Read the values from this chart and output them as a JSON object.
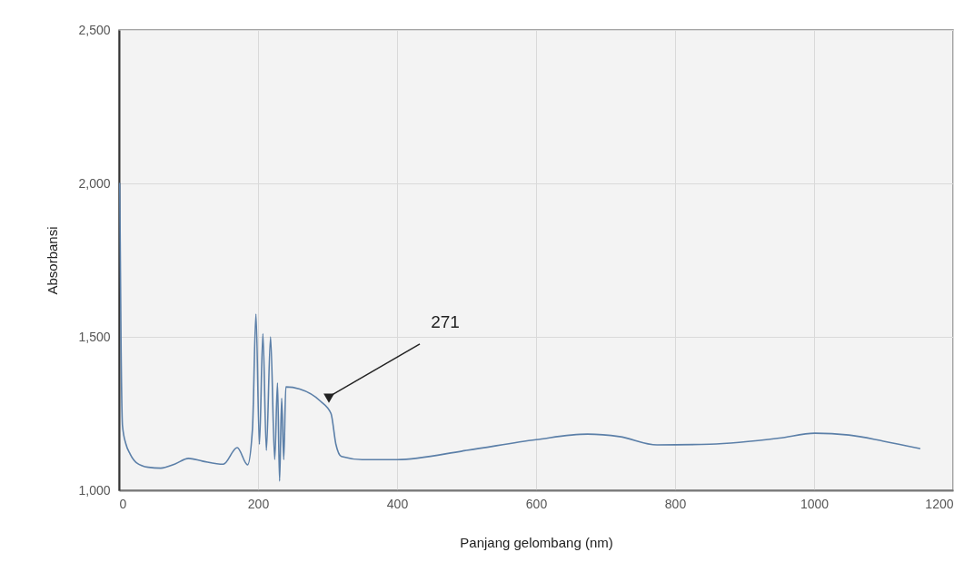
{
  "chart_data": {
    "type": "line",
    "xlabel": "Panjang gelombang (nm)",
    "ylabel": "Absorbansi",
    "x": [
      1,
      3,
      5,
      10,
      16,
      25,
      42,
      60,
      80,
      100,
      120,
      150,
      170,
      185,
      192,
      197,
      202,
      207,
      212,
      218,
      224,
      228,
      231,
      234,
      237,
      240,
      260,
      290,
      305,
      312,
      320,
      350,
      400,
      500,
      600,
      674,
      720,
      774,
      850,
      950,
      1001,
      1050,
      1100,
      1152
    ],
    "series": [
      {
        "color": "#5b7fa8",
        "values": [
          2000,
          1450,
          1210,
          1150,
          1118,
          1090,
          1075,
          1072,
          1085,
          1104,
          1095,
          1085,
          1139,
          1083,
          1200,
          1574,
          1150,
          1510,
          1130,
          1500,
          1100,
          1350,
          1030,
          1300,
          1100,
          1337,
          1330,
          1290,
          1250,
          1150,
          1110,
          1100,
          1100,
          1130,
          1165,
          1183,
          1175,
          1148,
          1150,
          1170,
          1186,
          1180,
          1160,
          1136
        ]
      }
    ],
    "xlim": [
      0,
      1200
    ],
    "xticks": [
      0,
      200,
      400,
      600,
      800,
      1000,
      1200
    ],
    "ylim": [
      1000,
      2500
    ],
    "yticks": [
      {
        "value": 1000,
        "label": "1,000"
      },
      {
        "value": 1500,
        "label": "1,500"
      },
      {
        "value": 2000,
        "label": "2,000"
      },
      {
        "value": 2500,
        "label": "2,500"
      }
    ],
    "grid": true,
    "marker": "none",
    "line_style": "solid",
    "annotations": [
      {
        "text": "271",
        "x": 302,
        "y": 1305
      }
    ]
  }
}
